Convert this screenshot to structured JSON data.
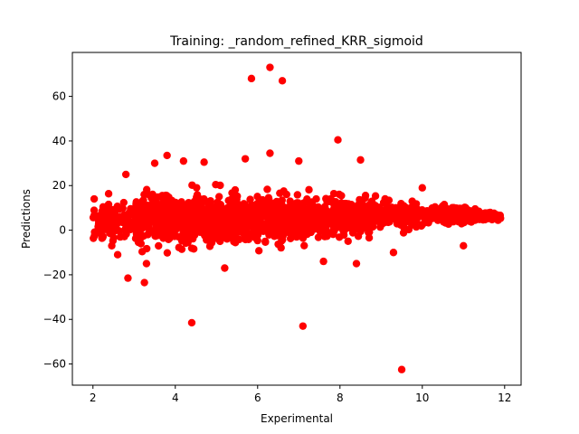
{
  "chart_data": {
    "type": "scatter",
    "title": "Training: _random_refined_KRR_sigmoid",
    "xlabel": "Experimental",
    "ylabel": "Predictions",
    "xlim": [
      1.5,
      12.4
    ],
    "ylim": [
      -69.5,
      79.7
    ],
    "xticks": [
      2,
      4,
      6,
      8,
      10,
      12
    ],
    "yticks": [
      -60,
      -40,
      -20,
      0,
      20,
      40,
      60
    ],
    "grid": false,
    "marker_color": "#ff0000",
    "outliers": [
      {
        "x": 5.85,
        "y": 68.0
      },
      {
        "x": 6.3,
        "y": 73.0
      },
      {
        "x": 6.6,
        "y": 67.0
      },
      {
        "x": 7.95,
        "y": 40.5
      },
      {
        "x": 4.4,
        "y": -41.5
      },
      {
        "x": 7.1,
        "y": -43.0
      },
      {
        "x": 9.5,
        "y": -62.5
      },
      {
        "x": 3.25,
        "y": -23.5
      },
      {
        "x": 2.85,
        "y": -21.5
      },
      {
        "x": 3.8,
        "y": 33.5
      },
      {
        "x": 5.7,
        "y": 32.0
      },
      {
        "x": 6.3,
        "y": 34.5
      },
      {
        "x": 8.5,
        "y": 31.5
      },
      {
        "x": 7.0,
        "y": 31.0
      },
      {
        "x": 4.7,
        "y": 30.5
      },
      {
        "x": 4.2,
        "y": 31.0
      },
      {
        "x": 3.5,
        "y": 30.0
      },
      {
        "x": 2.8,
        "y": 25.0
      },
      {
        "x": 11.0,
        "y": -7.0
      },
      {
        "x": 3.3,
        "y": -15.0
      },
      {
        "x": 2.6,
        "y": -11.0
      },
      {
        "x": 8.4,
        "y": -15.0
      },
      {
        "x": 5.2,
        "y": -17.0
      },
      {
        "x": 9.3,
        "y": -10.0
      },
      {
        "x": 7.6,
        "y": -14.0
      },
      {
        "x": 10.0,
        "y": 19.0
      }
    ],
    "band": [
      {
        "x": 2.0,
        "mean": 3.0,
        "spread": 6.5
      },
      {
        "x": 3.0,
        "mean": 5.0,
        "spread": 8.0
      },
      {
        "x": 4.0,
        "mean": 5.0,
        "spread": 8.5
      },
      {
        "x": 5.0,
        "mean": 5.0,
        "spread": 8.5
      },
      {
        "x": 6.0,
        "mean": 5.0,
        "spread": 8.0
      },
      {
        "x": 7.0,
        "mean": 5.0,
        "spread": 7.5
      },
      {
        "x": 8.0,
        "mean": 6.0,
        "spread": 7.0
      },
      {
        "x": 9.0,
        "mean": 6.0,
        "spread": 5.5
      },
      {
        "x": 10.0,
        "mean": 6.5,
        "spread": 4.0
      },
      {
        "x": 11.0,
        "mean": 7.0,
        "spread": 2.5
      },
      {
        "x": 11.9,
        "mean": 6.0,
        "spread": 1.2
      }
    ],
    "band_point_count": 1800
  }
}
